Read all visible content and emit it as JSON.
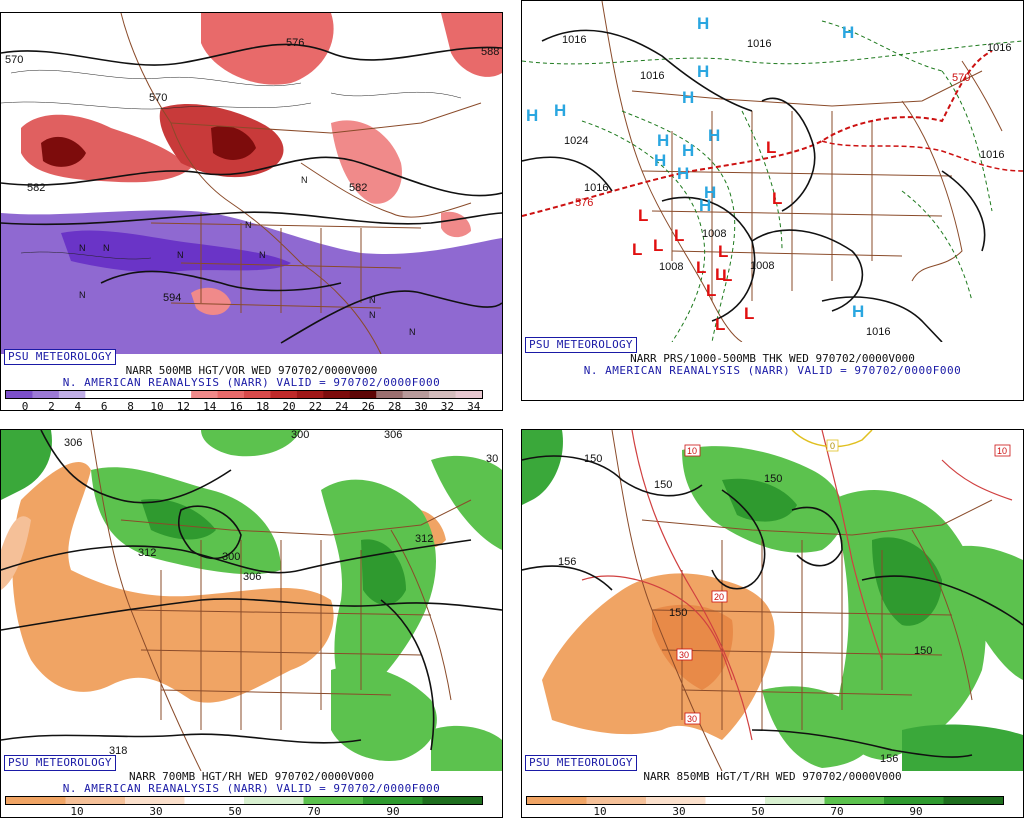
{
  "branding": "PSU METEOROLOGY",
  "panels": [
    {
      "title": "NARR 500MB HGT/VOR WED 970702/0000V000",
      "subtitle": "N. AMERICAN REANALYSIS (NARR) VALID = 970702/0000F000",
      "legend_ticks": [
        "0",
        "2",
        "4",
        "6",
        "8",
        "10",
        "12",
        "14",
        "16",
        "18",
        "20",
        "22",
        "24",
        "26",
        "28",
        "30",
        "32",
        "34"
      ],
      "contour_labels": [
        "570",
        "576",
        "588",
        "570",
        "582",
        "582",
        "594"
      ],
      "symbols": [
        "N"
      ]
    },
    {
      "title": "NARR PRS/1000-500MB THK WED 970702/0000V000",
      "subtitle": "N. AMERICAN REANALYSIS (NARR) VALID = 970702/0000F000",
      "contour_labels": [
        "1016",
        "1016",
        "1016",
        "1016",
        "1024",
        "1016",
        "1016",
        "1008",
        "1008",
        "1008",
        "1016",
        "576",
        "570"
      ],
      "symbols": [
        "H",
        "L"
      ]
    },
    {
      "title": "NARR 700MB HGT/RH WED 970702/0000V000",
      "subtitle": "N. AMERICAN REANALYSIS (NARR) VALID = 970702/0000F000",
      "legend_ticks": [
        "10",
        "30",
        "50",
        "70",
        "90"
      ],
      "contour_labels": [
        "306",
        "300",
        "306",
        "30",
        "312",
        "300",
        "306",
        "312",
        "318"
      ]
    },
    {
      "title": "NARR 850MB HGT/T/RH WED 970702/0000V000",
      "subtitle": "",
      "legend_ticks": [
        "10",
        "30",
        "50",
        "70",
        "90"
      ],
      "contour_labels": [
        "150",
        "150",
        "156",
        "150",
        "150",
        "150",
        "156"
      ],
      "temp_labels": [
        "10",
        "10",
        "20",
        "30",
        "30",
        "0"
      ]
    }
  ],
  "colors": {
    "vort": [
      "#7b4fc9",
      "#9c7ad6",
      "#c0aee6",
      "#ffffff",
      "#ffffff",
      "#ffffff",
      "#ffffff",
      "#f08a8a",
      "#e86a6a",
      "#d84a4a",
      "#c02a2a",
      "#a01818",
      "#7d0c0c",
      "#5e0606",
      "#9a6f6f",
      "#b89a9a",
      "#d4bcbc",
      "#e8c8d0"
    ],
    "rh": [
      "#f0a464",
      "#f5c098",
      "#fbe0cc",
      "#ffffff",
      "#d8f0d0",
      "#5cc24e",
      "#2f9a2f",
      "#1e6e1e"
    ],
    "high": "#2aa6e0",
    "low": "#e01010",
    "thickness": "#cc1111",
    "height": "#111111",
    "borders": "#8a4b2a"
  }
}
